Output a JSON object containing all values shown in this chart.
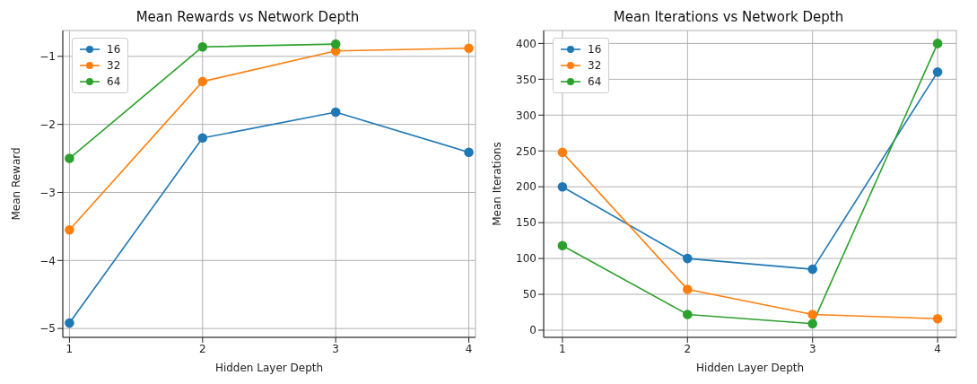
{
  "chart_data": [
    {
      "type": "line",
      "title": "Mean Rewards vs Network Depth",
      "xlabel": "Hidden Layer Depth",
      "ylabel": "Mean Reward",
      "x": [
        1,
        2,
        3,
        4
      ],
      "xlim": [
        0.95,
        4.05
      ],
      "xticks": [
        1,
        2,
        3,
        4
      ],
      "ylim": [
        -5.13,
        -0.62
      ],
      "yticks": [
        -5,
        -4,
        -3,
        -2,
        -1
      ],
      "grid": true,
      "legend": "top left",
      "marker": "circle",
      "series": [
        {
          "name": "16",
          "color": "#1f77b4",
          "values": [
            -4.92,
            -2.2,
            -1.82,
            -2.41
          ]
        },
        {
          "name": "32",
          "color": "#ff7f0e",
          "values": [
            -3.55,
            -1.37,
            -0.92,
            -0.88
          ]
        },
        {
          "name": "64",
          "color": "#2ca02c",
          "values": [
            -2.5,
            -0.86,
            -0.82,
            null
          ]
        }
      ]
    },
    {
      "type": "line",
      "title": "Mean Iterations vs Network Depth",
      "xlabel": "Hidden Layer Depth",
      "ylabel": "Mean Iterations",
      "x": [
        1,
        2,
        3,
        4
      ],
      "xlim": [
        0.85,
        4.15
      ],
      "xticks": [
        1,
        2,
        3,
        4
      ],
      "ylim": [
        -10,
        418
      ],
      "yticks": [
        0,
        50,
        100,
        150,
        200,
        250,
        300,
        350,
        400
      ],
      "grid": true,
      "legend": "top left",
      "marker": "circle",
      "series": [
        {
          "name": "16",
          "color": "#1f77b4",
          "values": [
            200,
            100,
            85,
            360
          ]
        },
        {
          "name": "32",
          "color": "#ff7f0e",
          "values": [
            248,
            57,
            22,
            16
          ]
        },
        {
          "name": "64",
          "color": "#2ca02c",
          "values": [
            118,
            22,
            9,
            400
          ]
        }
      ]
    }
  ]
}
